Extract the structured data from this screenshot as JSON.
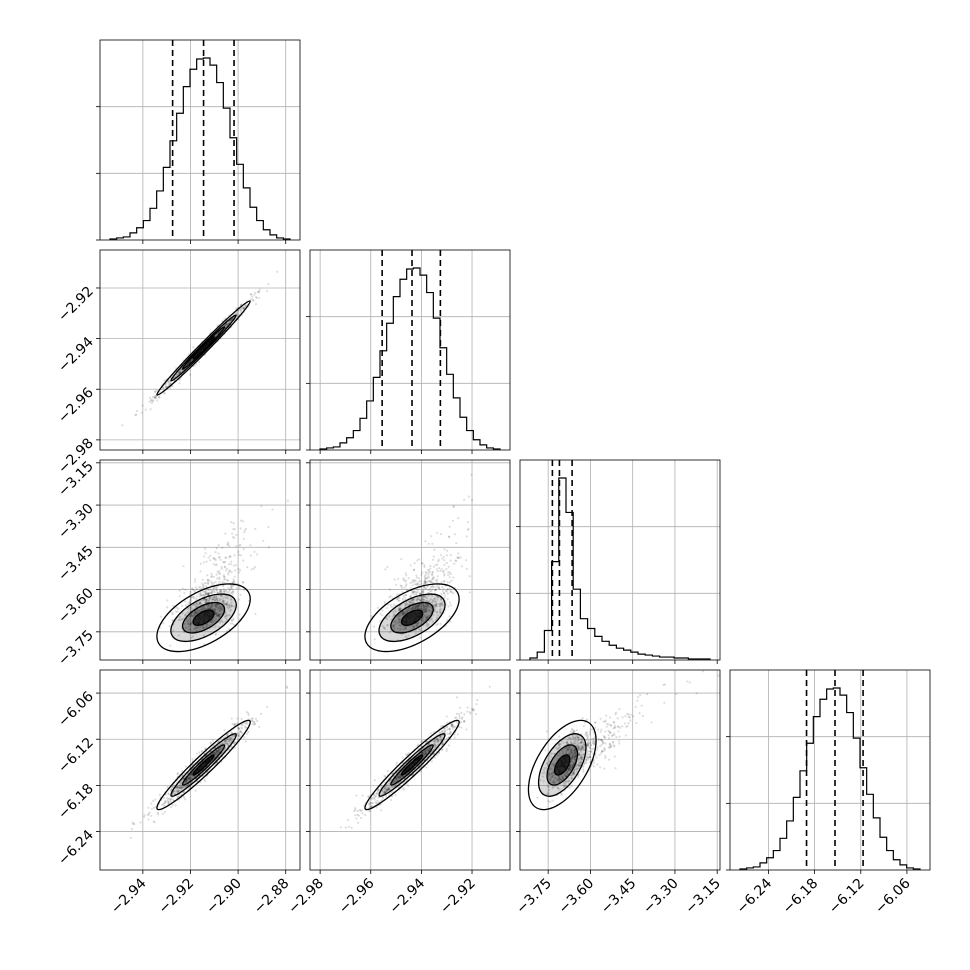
{
  "chart_data": {
    "type": "corner",
    "title": "",
    "grid": true,
    "colors": {
      "marks": "#000000",
      "grid": "#b0b0b0",
      "background": "#ffffff"
    },
    "parameters": [
      {
        "range": [
          -2.958,
          -2.874
        ],
        "ticks": [
          -2.94,
          -2.92,
          -2.9,
          -2.88
        ],
        "tick_labels": [
          "−2.94",
          "−2.92",
          "−2.90",
          "−2.88"
        ],
        "quantiles": [
          -2.9275,
          -2.9145,
          -2.9017
        ],
        "hist": [
          1,
          2,
          3,
          7,
          12,
          19,
          31,
          48,
          71,
          97,
          124,
          150,
          167,
          177,
          178,
          171,
          154,
          129,
          100,
          74,
          51,
          32,
          19,
          10,
          5,
          2,
          1
        ]
      },
      {
        "range": [
          -2.984,
          -2.905
        ],
        "ticks": [
          -2.98,
          -2.96,
          -2.94,
          -2.92
        ],
        "tick_labels": [
          "−2.98",
          "−2.96",
          "−2.94",
          "−2.92"
        ],
        "quantiles": [
          -2.9555,
          -2.9437,
          -2.9325
        ],
        "hist": [
          1,
          2,
          3,
          7,
          12,
          19,
          31,
          48,
          71,
          97,
          124,
          150,
          167,
          177,
          178,
          171,
          154,
          129,
          100,
          74,
          51,
          32,
          19,
          10,
          5,
          2,
          1
        ]
      },
      {
        "range": [
          -3.85,
          -3.14
        ],
        "ticks": [
          -3.75,
          -3.6,
          -3.45,
          -3.3,
          -3.15
        ],
        "tick_labels": [
          "−3.75",
          "−3.60",
          "−3.45",
          "−3.30",
          "−3.15"
        ],
        "quantiles": [
          -3.735,
          -3.71,
          -3.665
        ],
        "hist": [
          2,
          8,
          30,
          100,
          185,
          150,
          72,
          42,
          32,
          24,
          19,
          15,
          12,
          10,
          8,
          6,
          5,
          4,
          3,
          3,
          2,
          2,
          1,
          1,
          1
        ]
      },
      {
        "range": [
          -6.29,
          -6.03
        ],
        "ticks": [
          -6.24,
          -6.18,
          -6.12,
          -6.06
        ],
        "tick_labels": [
          "−6.24",
          "−6.18",
          "−6.12",
          "−6.06"
        ],
        "quantiles": [
          -6.1905,
          -6.1535,
          -6.117
        ],
        "hist": [
          1,
          2,
          3,
          7,
          12,
          19,
          31,
          48,
          71,
          97,
          124,
          150,
          167,
          177,
          178,
          171,
          154,
          129,
          100,
          74,
          51,
          32,
          19,
          10,
          5,
          2,
          1
        ]
      }
    ],
    "pairs": [
      {
        "x": 0,
        "y": 1,
        "mean": [
          -2.9145,
          -2.9437
        ],
        "sd": [
          0.0098,
          0.0093
        ],
        "rho": 0.99
      },
      {
        "x": 0,
        "y": 2,
        "mean": [
          -2.9145,
          -3.7
        ],
        "sd": [
          0.0098,
          0.06
        ],
        "rho": 0.55
      },
      {
        "x": 1,
        "y": 2,
        "mean": [
          -2.9437,
          -3.7
        ],
        "sd": [
          0.0093,
          0.06
        ],
        "rho": 0.55
      },
      {
        "x": 0,
        "y": 3,
        "mean": [
          -2.9145,
          -6.1535
        ],
        "sd": [
          0.0098,
          0.029
        ],
        "rho": 0.96
      },
      {
        "x": 1,
        "y": 3,
        "mean": [
          -2.9437,
          -6.1535
        ],
        "sd": [
          0.0093,
          0.029
        ],
        "rho": 0.96
      },
      {
        "x": 2,
        "y": 3,
        "mean": [
          -3.7,
          -6.1535
        ],
        "sd": [
          0.06,
          0.029
        ],
        "rho": 0.55
      }
    ]
  }
}
